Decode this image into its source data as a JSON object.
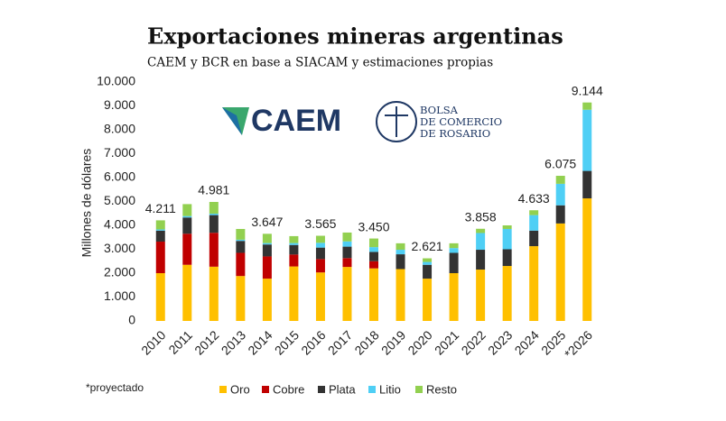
{
  "chart_data": {
    "type": "stacked-bar",
    "title": "Exportaciones mineras argentinas",
    "subtitle": "CAEM y BCR en base a SIACAM y estimaciones propias",
    "y_label": "Millones de dólares",
    "note": "*proyectado",
    "logos": [
      "CAEM",
      "BOLSA",
      "DE COMERCIO",
      "DE ROSARIO"
    ],
    "categories": [
      "2010",
      "2011",
      "2012",
      "2013",
      "2014",
      "2015",
      "2016",
      "2017",
      "2018",
      "2019",
      "2020",
      "2021",
      "2022",
      "2023",
      "2024",
      "2025",
      "*2026"
    ],
    "series": [
      {
        "name": "Oro",
        "color": "#ffc000",
        "values": [
          2000,
          2350,
          2270,
          1880,
          1770,
          2280,
          2030,
          2260,
          2200,
          2170,
          1770,
          2000,
          2150,
          2300,
          3130,
          4080,
          5130
        ]
      },
      {
        "name": "Cobre",
        "color": "#c00000",
        "values": [
          1320,
          1300,
          1420,
          970,
          930,
          500,
          560,
          370,
          300,
          0,
          0,
          0,
          0,
          0,
          0,
          0,
          0
        ]
      },
      {
        "name": "Plata",
        "color": "#333333",
        "values": [
          460,
          680,
          740,
          500,
          500,
          400,
          480,
          480,
          390,
          620,
          580,
          850,
          830,
          700,
          650,
          760,
          1150
        ]
      },
      {
        "name": "Litio",
        "color": "#4fcff5",
        "values": [
          50,
          60,
          60,
          50,
          60,
          80,
          200,
          220,
          200,
          190,
          120,
          200,
          700,
          850,
          650,
          900,
          2560
        ]
      },
      {
        "name": "Resto",
        "color": "#92d050",
        "values": [
          381,
          500,
          491,
          450,
          387,
          290,
          295,
          370,
          360,
          270,
          151,
          200,
          178,
          150,
          203,
          335,
          304
        ]
      }
    ],
    "totals": {
      "values": [
        4211,
        null,
        4981,
        null,
        3647,
        null,
        3565,
        null,
        3450,
        null,
        2621,
        null,
        3858,
        null,
        4633,
        6075,
        9144
      ],
      "value_labels": [
        "4.211",
        null,
        "4.981",
        null,
        "3.647",
        null,
        "3.565",
        null,
        "3.450",
        null,
        "2.621",
        null,
        "3.858",
        null,
        "4.633",
        "6.075",
        "9.144"
      ]
    },
    "ylim": [
      0,
      10000
    ],
    "yticks": [
      0,
      {
        "value": 1000,
        "label": "1.000"
      },
      {
        "value": 2000,
        "label": "2.000"
      },
      {
        "value": 3000,
        "label": "3.000"
      },
      {
        "value": 4000,
        "label": "4.000"
      },
      {
        "value": 5000,
        "label": "5.000"
      },
      {
        "value": 6000,
        "label": "6.000"
      },
      {
        "value": 7000,
        "label": "7.000"
      },
      {
        "value": 8000,
        "label": "8.000"
      },
      {
        "value": 9000,
        "label": "9.000"
      },
      {
        "value": 10000,
        "label": "10.000"
      }
    ],
    "grid": false
  }
}
